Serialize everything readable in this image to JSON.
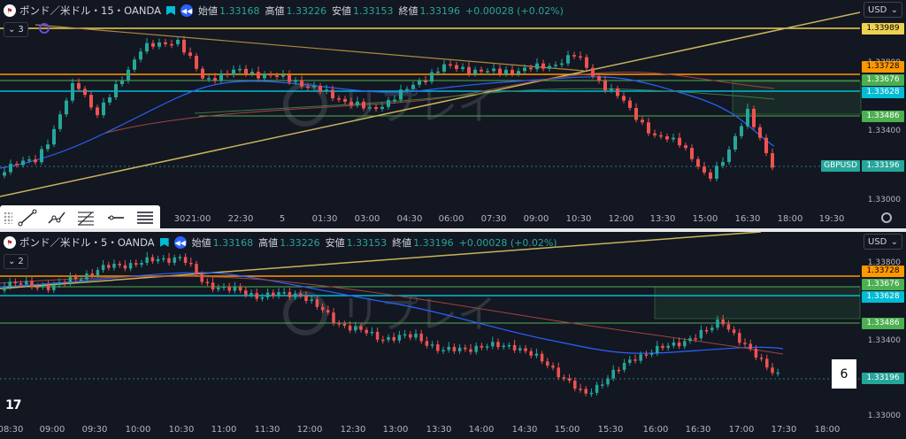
{
  "colors": {
    "bg": "#131722",
    "up": "#26a69a",
    "down": "#ef5350",
    "grid": "#1e222d",
    "orange": "#ff9800",
    "cyan": "#00bcd4",
    "green": "#4caf50",
    "yellow": "#f0c040",
    "blue": "#2962ff"
  },
  "currency": "USD",
  "pane1": {
    "flag": "🇬🇧",
    "symbol": "ポンド／米ドル・15・OANDA",
    "ohlc": [
      {
        "l": "始値",
        "v": "1.33168"
      },
      {
        "l": "高値",
        "v": "1.33226"
      },
      {
        "l": "安値",
        "v": "1.33153"
      },
      {
        "l": "終値",
        "v": "1.33196"
      }
    ],
    "change": "+0.00028 (+0.02%)",
    "indicators_count": "3",
    "price_tags": [
      {
        "price": "1.33989",
        "color": "#f0d050"
      },
      {
        "price": "1.33728",
        "color": "#ff9800"
      },
      {
        "price": "1.33676",
        "color": "#4caf50"
      },
      {
        "price": "1.33628",
        "color": "#00bcd4"
      },
      {
        "price": "1.33486",
        "color": "#4caf50"
      },
      {
        "price": "1.33196",
        "color": "#26a69a"
      }
    ],
    "price_ticks": [
      "1.33800",
      "1.33400",
      "1.33000"
    ],
    "series_name": "GBPUSD",
    "time_labels": [
      "30",
      "21:00",
      "22:30",
      "5",
      "01:30",
      "03:00",
      "04:30",
      "06:00",
      "07:30",
      "09:00",
      "10:30",
      "12:00",
      "13:30",
      "15:00",
      "16:30",
      "18:00",
      "19:30"
    ]
  },
  "pane2": {
    "flag": "🇬🇧",
    "symbol": "ポンド／米ドル・5・OANDA",
    "ohlc": [
      {
        "l": "始値",
        "v": "1.33168"
      },
      {
        "l": "高値",
        "v": "1.33226"
      },
      {
        "l": "安値",
        "v": "1.33153"
      },
      {
        "l": "終値",
        "v": "1.33196"
      }
    ],
    "change": "+0.00028 (+0.02%)",
    "indicators_count": "2",
    "price_tags": [
      {
        "price": "1.33728",
        "color": "#ff9800"
      },
      {
        "price": "1.33676",
        "color": "#4caf50"
      },
      {
        "price": "1.33628",
        "color": "#00bcd4"
      },
      {
        "price": "1.33486",
        "color": "#4caf50"
      },
      {
        "price": "1.33196",
        "color": "#26a69a"
      }
    ],
    "price_ticks": [
      "1.33800",
      "1.33400",
      "1.33000"
    ],
    "time_labels": [
      "08:30",
      "09:00",
      "09:30",
      "10:00",
      "10:30",
      "11:00",
      "11:30",
      "12:00",
      "12:30",
      "13:00",
      "13:30",
      "14:00",
      "14:30",
      "15:00",
      "15:30",
      "16:00",
      "16:30",
      "17:00",
      "17:30",
      "18:00"
    ]
  },
  "watermark": "リプレイ",
  "logo": "17",
  "page_number": "6",
  "toolbar_tools": [
    "trend-line-tool",
    "path-tool",
    "fib-tool",
    "ray-tool",
    "parallel-lines-tool"
  ]
}
